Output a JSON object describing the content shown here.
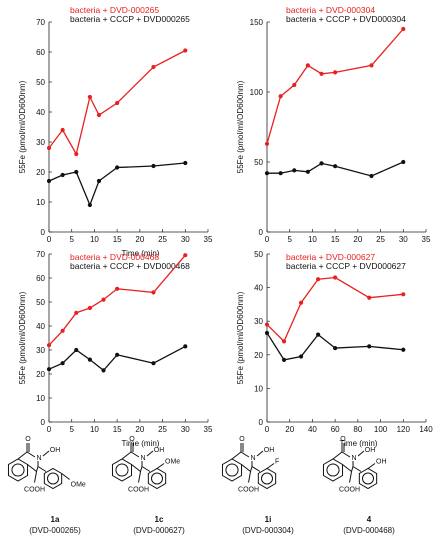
{
  "chart_data": [
    {
      "type": "line",
      "x_ticks": [
        0,
        5,
        10,
        15,
        20,
        25,
        30,
        35
      ],
      "y_ticks": [
        0,
        10,
        20,
        30,
        40,
        50,
        60,
        70
      ],
      "xlim": [
        0,
        35
      ],
      "ylim": [
        0,
        70
      ],
      "xlabel": "Time (min)",
      "ylabel": "55Fe (pmol/ml/OD600nm)",
      "legend": [
        "bacteria + DVD-000265",
        "bacteria + CCCP + DVD000265"
      ],
      "series": [
        {
          "name": "bacteria + DVD-000265",
          "color": "#e8201f",
          "x": [
            0,
            3,
            6,
            9,
            11,
            15,
            23,
            30
          ],
          "y": [
            28,
            34,
            26,
            45,
            39,
            43,
            55,
            60.5
          ]
        },
        {
          "name": "bacteria + CCCP + DVD000265",
          "color": "#111111",
          "x": [
            0,
            3,
            6,
            9,
            11,
            15,
            23,
            30
          ],
          "y": [
            17,
            19,
            20,
            9,
            17,
            21.5,
            22,
            23
          ]
        }
      ]
    },
    {
      "type": "line",
      "x_ticks": [
        0,
        5,
        10,
        15,
        20,
        25,
        30,
        35
      ],
      "y_ticks": [
        0,
        50,
        100,
        150
      ],
      "xlim": [
        0,
        35
      ],
      "ylim": [
        0,
        150
      ],
      "xlabel": "",
      "ylabel": "55Fe (pmol/ml/OD600nm)",
      "legend": [
        "bacteria + DVD-000304",
        "bacteria + CCCP + DVD000304"
      ],
      "series": [
        {
          "name": "bacteria + DVD-000304",
          "color": "#e8201f",
          "x": [
            0,
            3,
            6,
            9,
            12,
            15,
            23,
            30
          ],
          "y": [
            63,
            97,
            105,
            119,
            113,
            114,
            119,
            145
          ]
        },
        {
          "name": "bacteria + CCCP + DVD000304",
          "color": "#111111",
          "x": [
            0,
            3,
            6,
            9,
            12,
            15,
            23,
            30
          ],
          "y": [
            42,
            42,
            44,
            43,
            49,
            47,
            40,
            50
          ]
        }
      ]
    },
    {
      "type": "line",
      "x_ticks": [
        0,
        5,
        10,
        15,
        20,
        25,
        30,
        35
      ],
      "y_ticks": [
        0,
        10,
        20,
        30,
        40,
        50,
        60,
        70
      ],
      "xlim": [
        0,
        35
      ],
      "ylim": [
        0,
        70
      ],
      "xlabel": "Time (min)",
      "ylabel": "55Fe (pmol/ml/OD600nm)",
      "legend": [
        "bacteria + DVD-000468",
        "bacteria + CCCP + DVD000468"
      ],
      "series": [
        {
          "name": "bacteria + DVD-000468",
          "color": "#e8201f",
          "x": [
            0,
            3,
            6,
            9,
            12,
            15,
            23,
            30
          ],
          "y": [
            32,
            38,
            45.5,
            47.5,
            51,
            55.5,
            54,
            69.5
          ]
        },
        {
          "name": "bacteria + CCCP + DVD000468",
          "color": "#111111",
          "x": [
            0,
            3,
            6,
            9,
            12,
            15,
            23,
            30
          ],
          "y": [
            22,
            24.5,
            30,
            26,
            21.5,
            28,
            24.5,
            31.5
          ]
        }
      ]
    },
    {
      "type": "line",
      "x_ticks": [
        0,
        20,
        40,
        60,
        80,
        100,
        120,
        140
      ],
      "y_ticks": [
        0,
        10,
        20,
        30,
        40,
        50
      ],
      "xlim": [
        0,
        140
      ],
      "ylim": [
        0,
        50
      ],
      "xlabel": "Time (min)",
      "ylabel": "55Fe (pmol/ml/OD600nm)",
      "legend": [
        "bacteria + DVD-000627",
        "bacteria + CCCP + DVD000627"
      ],
      "series": [
        {
          "name": "bacteria + DVD-000627",
          "color": "#e8201f",
          "x": [
            0,
            15,
            30,
            45,
            60,
            90,
            120
          ],
          "y": [
            29,
            24,
            35.5,
            42.5,
            43,
            37,
            38
          ]
        },
        {
          "name": "bacteria + CCCP + DVD000627",
          "color": "#111111",
          "x": [
            0,
            15,
            30,
            45,
            60,
            90,
            120
          ],
          "y": [
            26.5,
            18.5,
            19.5,
            26,
            22,
            22.5,
            21.5
          ]
        }
      ]
    }
  ],
  "compounds": [
    {
      "label": "1a",
      "code": "(DVD-000265)",
      "substituent": "OMe"
    },
    {
      "label": "1c",
      "code": "(DVD-000627)",
      "substituent": "OMe"
    },
    {
      "label": "1i",
      "code": "(DVD-000304)",
      "substituent": "F"
    },
    {
      "label": "4",
      "code": "(DVD-000468)",
      "substituent": "OH"
    }
  ],
  "atoms": {
    "o": "O",
    "n": "N",
    "oh": "OH",
    "cooh": "COOH"
  }
}
